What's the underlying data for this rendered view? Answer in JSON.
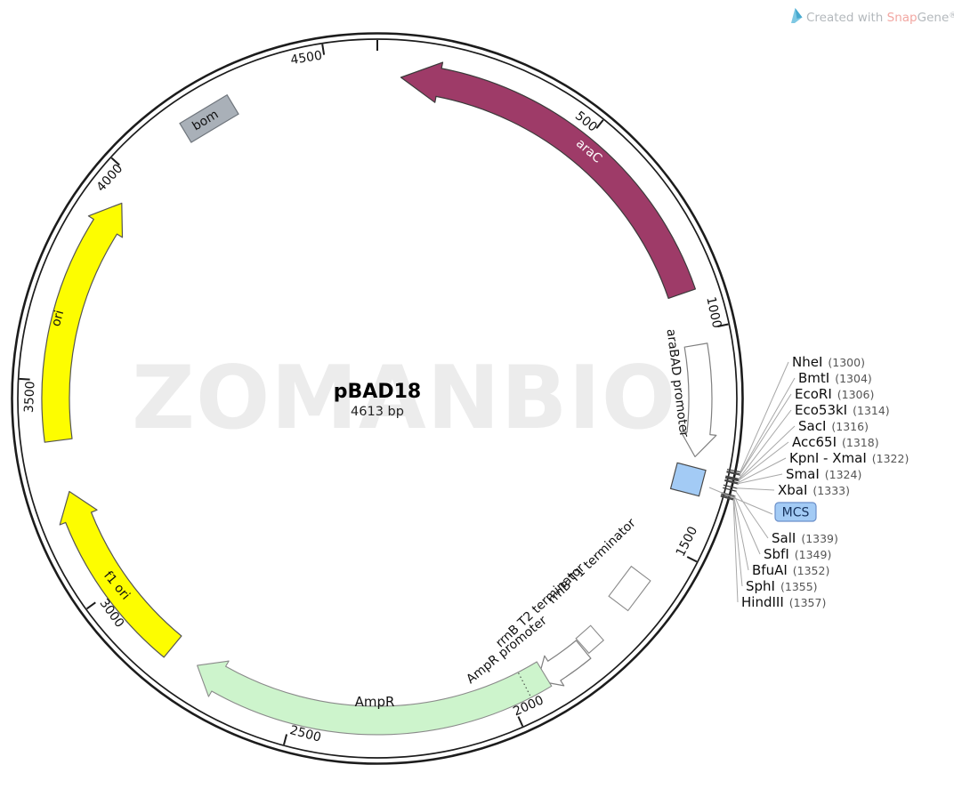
{
  "page_watermark": "ZOMANBIO",
  "credit": {
    "created_with": "Created with ",
    "brand_snap": "Snap",
    "brand_gene": "Gene",
    "registered": "®",
    "logo_color": "#7ec8e3"
  },
  "plasmid": {
    "name": "pBAD18",
    "size_label": "4613 bp",
    "size_bp": 4613
  },
  "ticks": [
    {
      "bp": 500,
      "label": "500"
    },
    {
      "bp": 1000,
      "label": "1000"
    },
    {
      "bp": 1500,
      "label": "1500"
    },
    {
      "bp": 2000,
      "label": "2000"
    },
    {
      "bp": 2500,
      "label": "2500"
    },
    {
      "bp": 3000,
      "label": "3000"
    },
    {
      "bp": 3500,
      "label": "3500"
    },
    {
      "bp": 4000,
      "label": "4000"
    },
    {
      "bp": 4500,
      "label": "4500"
    }
  ],
  "features": [
    {
      "id": "araC",
      "label": "araC",
      "color": "#9e3b68"
    },
    {
      "id": "araBAD_promoter",
      "label": "araBAD promoter",
      "color": "#ffffff"
    },
    {
      "id": "MCS",
      "label": "MCS",
      "color": "#a3cbf5"
    },
    {
      "id": "rrnB_T1_terminator",
      "label": "rrnB T1 terminator",
      "color": "#ffffff"
    },
    {
      "id": "rrnB_T2_terminator",
      "label": "rrnB T2 terminator",
      "color": "#ffffff"
    },
    {
      "id": "AmpR_promoter",
      "label": "AmpR promoter",
      "color": "#ffffff"
    },
    {
      "id": "AmpR",
      "label": "AmpR",
      "color": "#cdf4cc"
    },
    {
      "id": "f1_ori",
      "label": "f1 ori",
      "color": "#fdfd00"
    },
    {
      "id": "ori",
      "label": "ori",
      "color": "#fdfd00"
    },
    {
      "id": "bom",
      "label": "bom",
      "color": "#a9b0b8"
    }
  ],
  "enzyme_sites": [
    {
      "name": "NheI",
      "bp": 1300,
      "pos": "(1300)"
    },
    {
      "name": "BmtI",
      "bp": 1304,
      "pos": "(1304)"
    },
    {
      "name": "EcoRI",
      "bp": 1306,
      "pos": "(1306)"
    },
    {
      "name": "Eco53kI",
      "bp": 1314,
      "pos": "(1314)"
    },
    {
      "name": "SacI",
      "bp": 1316,
      "pos": "(1316)"
    },
    {
      "name": "Acc65I",
      "bp": 1318,
      "pos": "(1318)"
    },
    {
      "name": "KpnI - XmaI",
      "bp": 1322,
      "pos": "(1322)"
    },
    {
      "name": "SmaI",
      "bp": 1324,
      "pos": "(1324)"
    },
    {
      "name": "XbaI",
      "bp": 1333,
      "pos": "(1333)"
    },
    {
      "name": "SalI",
      "bp": 1339,
      "pos": "(1339)"
    },
    {
      "name": "SbfI",
      "bp": 1349,
      "pos": "(1349)"
    },
    {
      "name": "BfuAI",
      "bp": 1352,
      "pos": "(1352)"
    },
    {
      "name": "SphI",
      "bp": 1355,
      "pos": "(1355)"
    },
    {
      "name": "HindIII",
      "bp": 1357,
      "pos": "(1357)"
    }
  ],
  "mcs_badge_label": "MCS"
}
